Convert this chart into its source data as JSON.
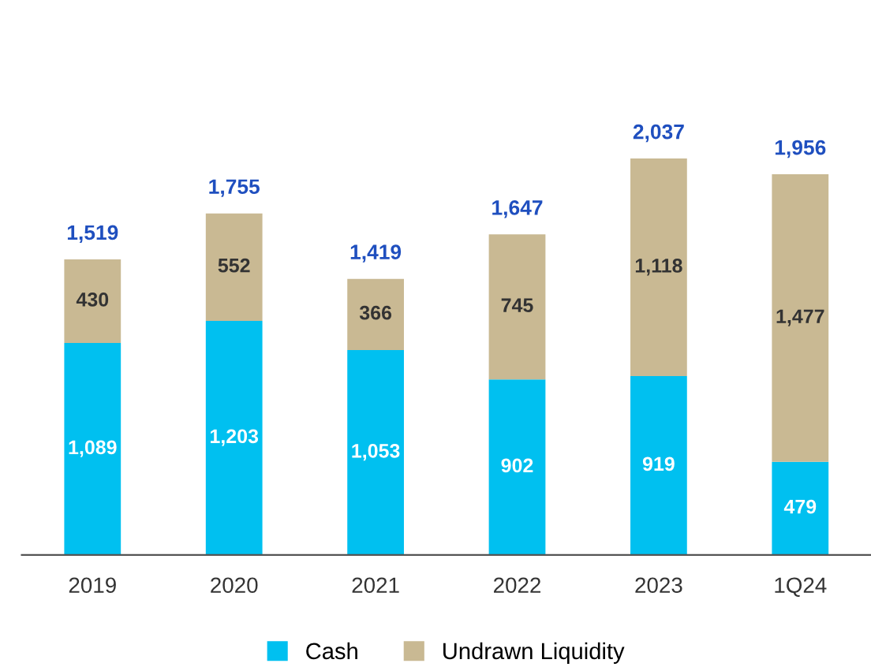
{
  "chart_data": {
    "type": "bar",
    "stacked": true,
    "categories": [
      "2019",
      "2020",
      "2021",
      "2022",
      "2023",
      "1Q24"
    ],
    "series": [
      {
        "name": "Cash",
        "color": "#00c0f0",
        "values": [
          1089,
          1203,
          1053,
          902,
          919,
          479
        ],
        "value_labels": [
          "1,089",
          "1,203",
          "1,053",
          "902",
          "919",
          "479"
        ]
      },
      {
        "name": "Undrawn Liquidity",
        "color": "#c9b993",
        "values": [
          430,
          552,
          366,
          745,
          1118,
          1477
        ],
        "value_labels": [
          "430",
          "552",
          "366",
          "745",
          "1,118",
          "1,477"
        ]
      }
    ],
    "totals": [
      "1,519",
      "1,755",
      "1,419",
      "1,647",
      "2,037",
      "1,956"
    ],
    "legend": "bottom",
    "grid": false
  }
}
